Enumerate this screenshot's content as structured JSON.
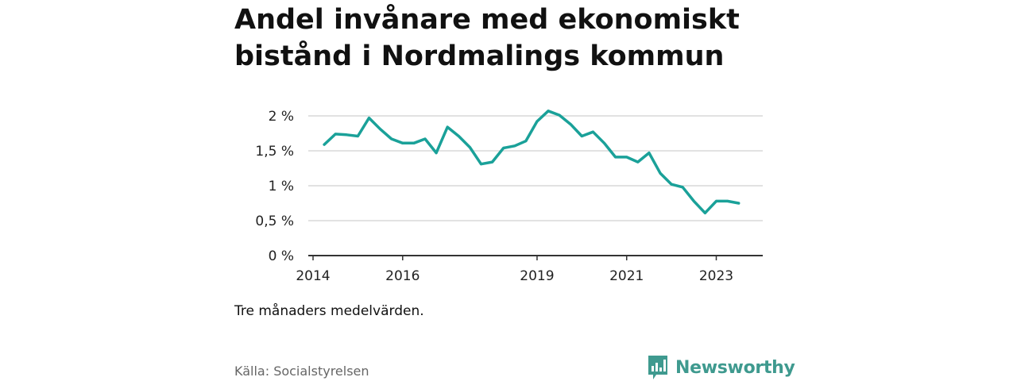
{
  "title": "Andel invånare med ekonomiskt bistånd i Nordmalings kommun",
  "note": "Tre månaders medelvärden.",
  "source": "Källa: Socialstyrelsen",
  "brand": {
    "name": "Newsworthy",
    "icon": "newsworthy-logo-icon",
    "color": "#3f9a8f"
  },
  "colors": {
    "line": "#1aa199",
    "grid": "#d9d9d9",
    "axis": "#333333"
  },
  "chart_data": {
    "type": "line",
    "title": "Andel invånare med ekonomiskt bistånd i Nordmalings kommun",
    "xlabel": "",
    "ylabel": "",
    "ylim": [
      0,
      2
    ],
    "xlim": [
      "2014-01",
      "2024-03"
    ],
    "grid": true,
    "y_ticks": [
      {
        "value": 0,
        "label": "0 %"
      },
      {
        "value": 0.5,
        "label": "0,5 %"
      },
      {
        "value": 1,
        "label": "1 %"
      },
      {
        "value": 1.5,
        "label": "1,5 %"
      },
      {
        "value": 2,
        "label": "2 %"
      }
    ],
    "x_ticks": [
      {
        "value": "2014-01",
        "label": "2014"
      },
      {
        "value": "2016-01",
        "label": "2016"
      },
      {
        "value": "2019-01",
        "label": "2019"
      },
      {
        "value": "2021-01",
        "label": "2021"
      },
      {
        "value": "2023-01",
        "label": "2023"
      }
    ],
    "series": [
      {
        "x": [
          "2014-04",
          "2014-07",
          "2014-10",
          "2015-01",
          "2015-04",
          "2015-07",
          "2015-10",
          "2016-01",
          "2016-04",
          "2016-07",
          "2016-10",
          "2017-01",
          "2017-04",
          "2017-07",
          "2017-10",
          "2018-01",
          "2018-04",
          "2018-07",
          "2018-10",
          "2019-01",
          "2019-04",
          "2019-07",
          "2019-10",
          "2020-01",
          "2020-04",
          "2020-07",
          "2020-10",
          "2021-01",
          "2021-04",
          "2021-07",
          "2021-10",
          "2022-01",
          "2022-04",
          "2022-07",
          "2022-10",
          "2023-01",
          "2023-04",
          "2023-07",
          "2023-10"
        ],
        "values": [
          1.59,
          1.74,
          1.73,
          1.71,
          1.97,
          1.81,
          1.67,
          1.61,
          1.61,
          1.67,
          1.47,
          1.84,
          1.71,
          1.55,
          1.31,
          1.34,
          1.54,
          1.57,
          1.64,
          1.92,
          2.07,
          2.01,
          1.88,
          1.71,
          1.77,
          1.61,
          1.41,
          1.41,
          1.34,
          1.47,
          1.18,
          1.02,
          0.98,
          0.78,
          0.61,
          0.78,
          0.78,
          0.75,
          null
        ]
      }
    ]
  }
}
